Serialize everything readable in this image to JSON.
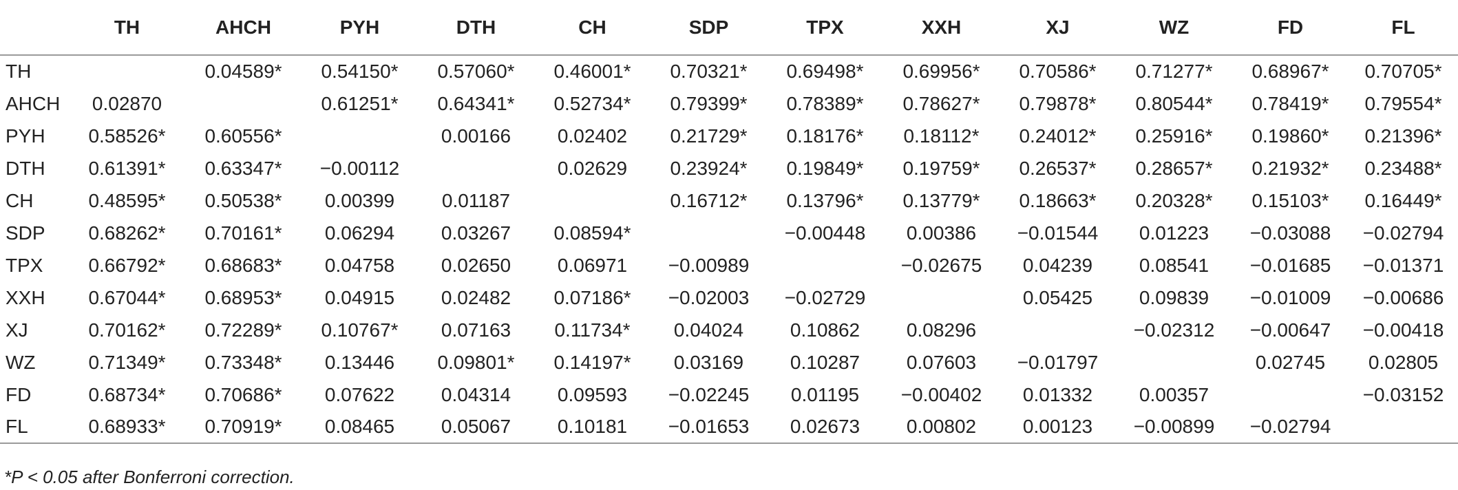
{
  "table": {
    "columns": [
      "",
      "TH",
      "AHCH",
      "PYH",
      "DTH",
      "CH",
      "SDP",
      "TPX",
      "XXH",
      "XJ",
      "WZ",
      "FD",
      "FL"
    ],
    "rows": [
      [
        "TH",
        "",
        "0.04589*",
        "0.54150*",
        "0.57060*",
        "0.46001*",
        "0.70321*",
        "0.69498*",
        "0.69956*",
        "0.70586*",
        "0.71277*",
        "0.68967*",
        "0.70705*"
      ],
      [
        "AHCH",
        "0.02870",
        "",
        "0.61251*",
        "0.64341*",
        "0.52734*",
        "0.79399*",
        "0.78389*",
        "0.78627*",
        "0.79878*",
        "0.80544*",
        "0.78419*",
        "0.79554*"
      ],
      [
        "PYH",
        "0.58526*",
        "0.60556*",
        "",
        "0.00166",
        "0.02402",
        "0.21729*",
        "0.18176*",
        "0.18112*",
        "0.24012*",
        "0.25916*",
        "0.19860*",
        "0.21396*"
      ],
      [
        "DTH",
        "0.61391*",
        "0.63347*",
        "−0.00112",
        "",
        "0.02629",
        "0.23924*",
        "0.19849*",
        "0.19759*",
        "0.26537*",
        "0.28657*",
        "0.21932*",
        "0.23488*"
      ],
      [
        "CH",
        "0.48595*",
        "0.50538*",
        "0.00399",
        "0.01187",
        "",
        "0.16712*",
        "0.13796*",
        "0.13779*",
        "0.18663*",
        "0.20328*",
        "0.15103*",
        "0.16449*"
      ],
      [
        "SDP",
        "0.68262*",
        "0.70161*",
        "0.06294",
        "0.03267",
        "0.08594*",
        "",
        "−0.00448",
        "0.00386",
        "−0.01544",
        "0.01223",
        "−0.03088",
        "−0.02794"
      ],
      [
        "TPX",
        "0.66792*",
        "0.68683*",
        "0.04758",
        "0.02650",
        "0.06971",
        "−0.00989",
        "",
        "−0.02675",
        "0.04239",
        "0.08541",
        "−0.01685",
        "−0.01371"
      ],
      [
        "XXH",
        "0.67044*",
        "0.68953*",
        "0.04915",
        "0.02482",
        "0.07186*",
        "−0.02003",
        "−0.02729",
        "",
        "0.05425",
        "0.09839",
        "−0.01009",
        "−0.00686"
      ],
      [
        "XJ",
        "0.70162*",
        "0.72289*",
        "0.10767*",
        "0.07163",
        "0.11734*",
        "0.04024",
        "0.10862",
        "0.08296",
        "",
        "−0.02312",
        "−0.00647",
        "−0.00418"
      ],
      [
        "WZ",
        "0.71349*",
        "0.73348*",
        "0.13446",
        "0.09801*",
        "0.14197*",
        "0.03169",
        "0.10287",
        "0.07603",
        "−0.01797",
        "",
        "0.02745",
        "0.02805"
      ],
      [
        "FD",
        "0.68734*",
        "0.70686*",
        "0.07622",
        "0.04314",
        "0.09593",
        "−0.02245",
        "0.01195",
        "−0.00402",
        "0.01332",
        "0.00357",
        "",
        "−0.03152"
      ],
      [
        "FL",
        "0.68933*",
        "0.70919*",
        "0.08465",
        "0.05067",
        "0.10181",
        "−0.01653",
        "0.02673",
        "0.00802",
        "0.00123",
        "−0.00899",
        "−0.02794",
        ""
      ]
    ]
  },
  "footnote": "*P < 0.05 after Bonferroni correction."
}
